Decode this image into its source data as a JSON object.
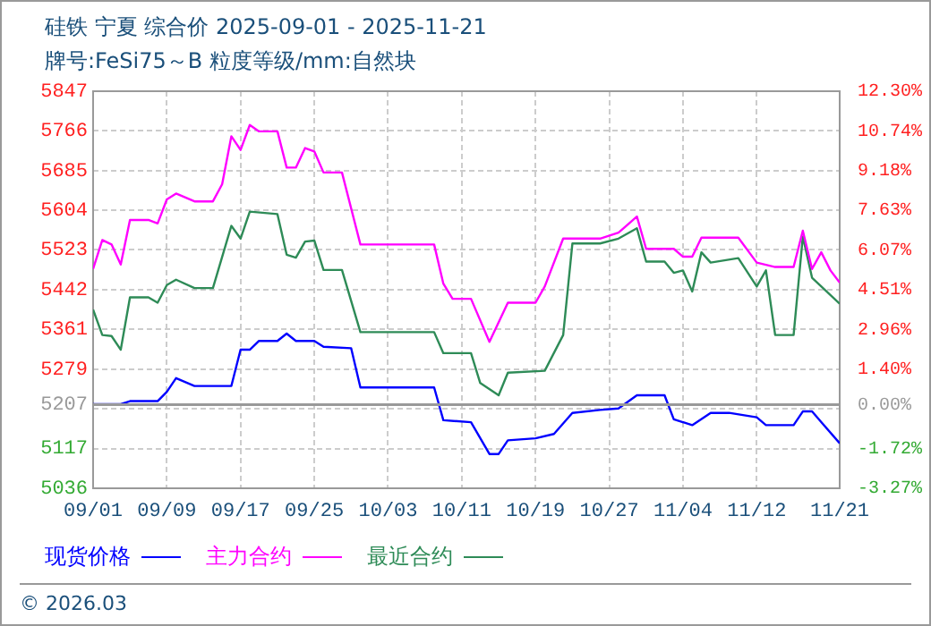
{
  "chart_data": {
    "type": "line",
    "title": "硅铁 宁夏 综合价 2025-09-01 - 2025-11-21",
    "subtitle": "牌号:FeSi75～B 粒度等级/mm:自然块",
    "xlim": [
      "2025-09-01",
      "2025-11-21"
    ],
    "xticks": [
      {
        "value": "2025-09-01",
        "label": "09/01"
      },
      {
        "value": "2025-09-09",
        "label": "09/09"
      },
      {
        "value": "2025-09-17",
        "label": "09/17"
      },
      {
        "value": "2025-09-25",
        "label": "09/25"
      },
      {
        "value": "2025-10-03",
        "label": "10/03"
      },
      {
        "value": "2025-10-11",
        "label": "10/11"
      },
      {
        "value": "2025-10-19",
        "label": "10/19"
      },
      {
        "value": "2025-10-27",
        "label": "10/27"
      },
      {
        "value": "2025-11-04",
        "label": "11/04"
      },
      {
        "value": "2025-11-12",
        "label": "11/12"
      },
      {
        "value": "2025-11-21",
        "label": "11/21"
      }
    ],
    "ylim": [
      5036,
      5847
    ],
    "yticks": [
      5036,
      5117,
      {
        "value": 5198,
        "label": null
      },
      5207,
      5279,
      5361,
      5442,
      5523,
      5604,
      5685,
      5766,
      5847
    ],
    "y2lim": [
      -3.27,
      12.3
    ],
    "y2ticks": [
      {
        "value": -3.27,
        "label": "-3.27%"
      },
      {
        "value": -1.72,
        "label": "-1.72%"
      },
      {
        "value": 0,
        "label": "0.00%"
      },
      {
        "value": 1.4,
        "label": "1.40%"
      },
      {
        "value": 2.96,
        "label": "2.96%"
      },
      {
        "value": 4.51,
        "label": "4.51%"
      },
      {
        "value": 6.07,
        "label": "6.07%"
      },
      {
        "value": 7.63,
        "label": "7.63%"
      },
      {
        "value": 9.18,
        "label": "9.18%"
      },
      {
        "value": 10.74,
        "label": "10.74%"
      },
      {
        "value": 12.3,
        "label": "12.30%"
      }
    ],
    "grid": true,
    "legend": "bottom",
    "marker": "none",
    "line_style": "solid",
    "ref_lines": [
      {
        "axis": "y",
        "value": 5207,
        "color": "#999999"
      }
    ],
    "annotations": [
      "© 2026.03"
    ],
    "series": [
      {
        "name": "现货价格",
        "color": "#0000ff",
        "x": [
          "2025-09-01",
          "2025-09-04",
          "2025-09-05",
          "2025-09-08",
          "2025-09-09",
          "2025-09-10",
          "2025-09-12",
          "2025-09-16",
          "2025-09-17",
          "2025-09-18",
          "2025-09-19",
          "2025-09-21",
          "2025-09-22",
          "2025-09-23",
          "2025-09-25",
          "2025-09-26",
          "2025-09-29",
          "2025-09-30",
          "2025-10-08",
          "2025-10-09",
          "2025-10-12",
          "2025-10-14",
          "2025-10-15",
          "2025-10-16",
          "2025-10-19",
          "2025-10-21",
          "2025-10-23",
          "2025-10-26",
          "2025-10-28",
          "2025-10-30",
          "2025-11-02",
          "2025-11-03",
          "2025-11-05",
          "2025-11-07",
          "2025-11-09",
          "2025-11-12",
          "2025-11-13",
          "2025-11-16",
          "2025-11-17",
          "2025-11-18",
          "2025-11-19",
          "2025-11-21"
        ],
        "values": [
          5208,
          5208,
          5214,
          5214,
          5233,
          5261,
          5245,
          5245,
          5319,
          5319,
          5337,
          5337,
          5352,
          5337,
          5337,
          5325,
          5322,
          5242,
          5242,
          5175,
          5171,
          5106,
          5106,
          5134,
          5138,
          5147,
          5190,
          5196,
          5199,
          5226,
          5226,
          5177,
          5165,
          5190,
          5190,
          5181,
          5165,
          5165,
          5193,
          5193,
          5171,
          5128
        ]
      },
      {
        "name": "主力合约",
        "color": "#ff00ff",
        "x": [
          "2025-09-01",
          "2025-09-02",
          "2025-09-03",
          "2025-09-04",
          "2025-09-05",
          "2025-09-07",
          "2025-09-08",
          "2025-09-09",
          "2025-09-10",
          "2025-09-12",
          "2025-09-14",
          "2025-09-15",
          "2025-09-16",
          "2025-09-17",
          "2025-09-18",
          "2025-09-19",
          "2025-09-21",
          "2025-09-22",
          "2025-09-23",
          "2025-09-24",
          "2025-09-25",
          "2025-09-26",
          "2025-09-28",
          "2025-09-30",
          "2025-10-08",
          "2025-10-09",
          "2025-10-10",
          "2025-10-12",
          "2025-10-14",
          "2025-10-16",
          "2025-10-19",
          "2025-10-20",
          "2025-10-22",
          "2025-10-26",
          "2025-10-28",
          "2025-10-30",
          "2025-10-31",
          "2025-11-03",
          "2025-11-04",
          "2025-11-05",
          "2025-11-06",
          "2025-11-10",
          "2025-11-12",
          "2025-11-14",
          "2025-11-16",
          "2025-11-17",
          "2025-11-18",
          "2025-11-19",
          "2025-11-20",
          "2025-11-21"
        ],
        "values": [
          5484,
          5543,
          5534,
          5493,
          5584,
          5584,
          5577,
          5626,
          5638,
          5622,
          5622,
          5657,
          5755,
          5727,
          5778,
          5765,
          5765,
          5691,
          5691,
          5731,
          5724,
          5681,
          5681,
          5534,
          5534,
          5454,
          5423,
          5423,
          5335,
          5415,
          5415,
          5448,
          5546,
          5546,
          5558,
          5591,
          5525,
          5525,
          5509,
          5509,
          5548,
          5548,
          5497,
          5488,
          5488,
          5562,
          5484,
          5518,
          5481,
          5456
        ]
      },
      {
        "name": "最近合约",
        "color": "#2e8b57",
        "x": [
          "2025-09-01",
          "2025-09-02",
          "2025-09-03",
          "2025-09-04",
          "2025-09-05",
          "2025-09-07",
          "2025-09-08",
          "2025-09-09",
          "2025-09-10",
          "2025-09-12",
          "2025-09-14",
          "2025-09-16",
          "2025-09-17",
          "2025-09-18",
          "2025-09-21",
          "2025-09-22",
          "2025-09-23",
          "2025-09-24",
          "2025-09-25",
          "2025-09-26",
          "2025-09-28",
          "2025-09-30",
          "2025-10-08",
          "2025-10-09",
          "2025-10-12",
          "2025-10-13",
          "2025-10-15",
          "2025-10-16",
          "2025-10-20",
          "2025-10-22",
          "2025-10-23",
          "2025-10-26",
          "2025-10-28",
          "2025-10-30",
          "2025-10-31",
          "2025-11-02",
          "2025-11-03",
          "2025-11-04",
          "2025-11-05",
          "2025-11-06",
          "2025-11-07",
          "2025-11-10",
          "2025-11-12",
          "2025-11-13",
          "2025-11-14",
          "2025-11-16",
          "2025-11-17",
          "2025-11-18",
          "2025-11-21"
        ],
        "values": [
          5401,
          5349,
          5347,
          5319,
          5426,
          5426,
          5415,
          5451,
          5462,
          5445,
          5445,
          5572,
          5546,
          5601,
          5596,
          5513,
          5507,
          5540,
          5542,
          5482,
          5482,
          5355,
          5355,
          5312,
          5312,
          5251,
          5226,
          5272,
          5276,
          5349,
          5536,
          5536,
          5546,
          5567,
          5499,
          5499,
          5476,
          5481,
          5438,
          5518,
          5497,
          5506,
          5448,
          5481,
          5349,
          5349,
          5550,
          5466,
          5413
        ]
      }
    ]
  }
}
